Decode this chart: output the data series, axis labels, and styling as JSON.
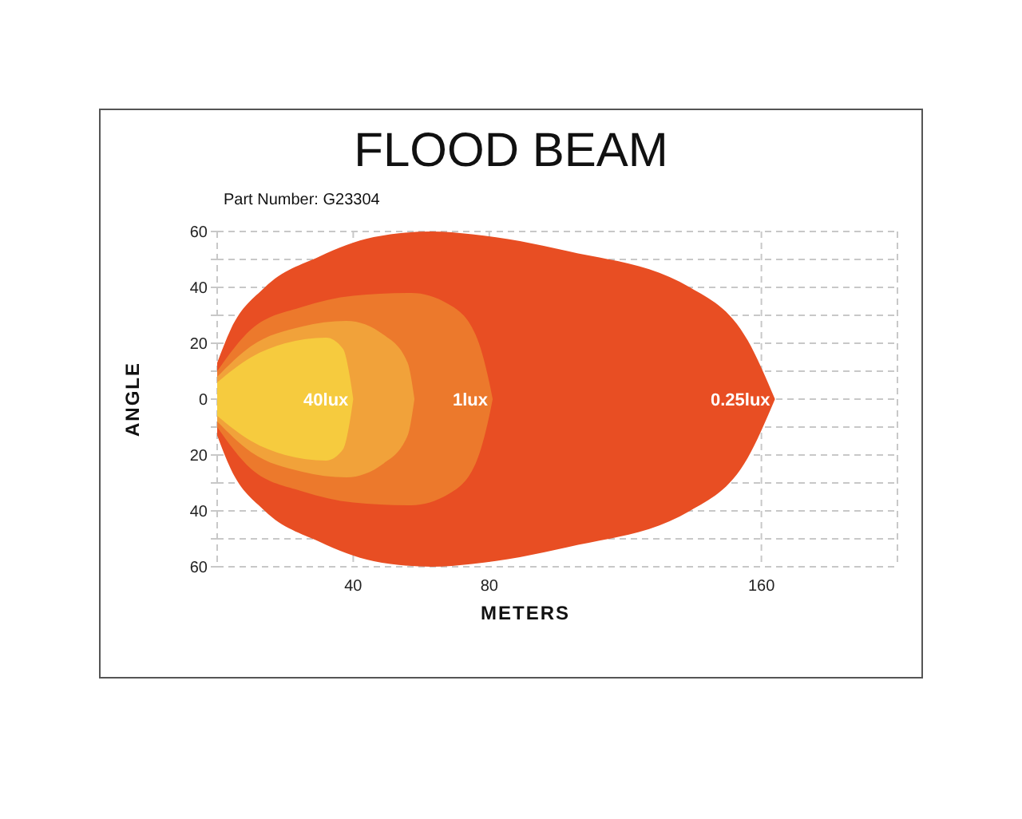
{
  "chart_data": {
    "type": "area",
    "title": "FLOOD BEAM",
    "subtitle": "Part Number: G23304",
    "xlabel": "METERS",
    "ylabel": "ANGLE",
    "xlim": [
      0,
      200
    ],
    "xticks": [
      40,
      80,
      160
    ],
    "ylim": [
      -60,
      60
    ],
    "yticks": [
      {
        "value": -60,
        "label": "60"
      },
      {
        "value": -50,
        "label": null
      },
      {
        "value": -40,
        "label": "40"
      },
      {
        "value": -30,
        "label": null
      },
      {
        "value": -20,
        "label": "20"
      },
      {
        "value": -10,
        "label": null
      },
      0,
      {
        "value": 10,
        "label": null
      },
      20,
      {
        "value": 30,
        "label": null
      },
      40,
      {
        "value": 50,
        "label": null
      },
      60
    ],
    "grid": true,
    "series": [
      {
        "name": "0.25lux",
        "color": "#e84e23",
        "x": [
          0,
          4,
          14,
          30,
          46,
          63,
          75,
          103,
          139,
          156,
          164
        ],
        "values": [
          13,
          25,
          40,
          51,
          58,
          60,
          59,
          53,
          40,
          21,
          0
        ]
      },
      {
        "color": "#e84e23",
        "x": [
          0,
          4,
          14,
          30,
          46,
          63,
          75,
          103,
          139,
          156,
          164
        ],
        "values": [
          -13,
          -25,
          -40,
          -51,
          -58,
          -60,
          -59,
          -53,
          -40,
          -21,
          0
        ]
      },
      {
        "name": "1lux",
        "color": "#ec792c",
        "x": [
          0,
          10,
          25,
          40,
          57,
          68,
          76,
          80,
          81
        ],
        "values": [
          10,
          25,
          33,
          37,
          38,
          34,
          23,
          6,
          0
        ]
      },
      {
        "color": "#ec792c",
        "x": [
          0,
          10,
          25,
          40,
          57,
          68,
          76,
          80,
          81
        ],
        "values": [
          -10,
          -25,
          -33,
          -37,
          -38,
          -34,
          -23,
          -6,
          0
        ]
      },
      {
        "color": "#f1a23a",
        "x": [
          0,
          10,
          25,
          38,
          49,
          56,
          58
        ],
        "values": [
          8,
          19,
          26,
          28,
          23,
          13,
          0
        ]
      },
      {
        "color": "#f1a23a",
        "x": [
          0,
          10,
          25,
          38,
          49,
          56,
          58
        ],
        "values": [
          -8,
          -19,
          -26,
          -28,
          -23,
          -13,
          0
        ]
      },
      {
        "name": "40lux",
        "color": "#f6cb3e",
        "x": [
          0,
          10,
          20,
          32,
          37,
          39,
          40
        ],
        "values": [
          6,
          15,
          20,
          22,
          18,
          8,
          0
        ]
      },
      {
        "color": "#f6cb3e",
        "x": [
          0,
          10,
          20,
          32,
          37,
          39,
          40
        ],
        "values": [
          -6,
          -15,
          -20,
          -22,
          -18,
          -8,
          0
        ]
      }
    ]
  }
}
